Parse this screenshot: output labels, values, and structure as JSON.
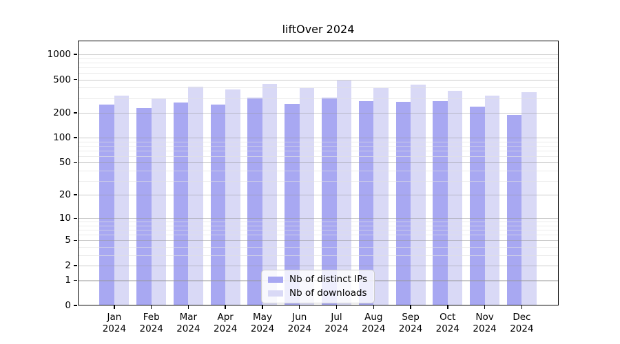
{
  "title": "liftOver 2024",
  "chart_data": {
    "type": "bar",
    "title": "liftOver 2024",
    "categories": [
      "Jan",
      "Feb",
      "Mar",
      "Apr",
      "May",
      "Jun",
      "Jul",
      "Aug",
      "Sep",
      "Oct",
      "Nov",
      "Dec"
    ],
    "year_label": "2024",
    "series": [
      {
        "name": "Nb of distinct IPs",
        "color": "#a8a8f2",
        "values": [
          249,
          226,
          265,
          252,
          303,
          255,
          301,
          278,
          270,
          275,
          236,
          188
        ]
      },
      {
        "name": "Nb of downloads",
        "color": "#d9d9f6",
        "values": [
          321,
          297,
          410,
          380,
          440,
          393,
          484,
          395,
          434,
          364,
          321,
          350
        ]
      }
    ],
    "yscale": "log10(1+v)",
    "ylim": [
      0,
      1459
    ],
    "y_ticks": [
      0,
      1,
      2,
      5,
      10,
      20,
      50,
      100,
      200,
      500,
      1000
    ],
    "y_minor_gridlines": [
      3,
      4,
      6,
      7,
      8,
      9,
      30,
      40,
      60,
      70,
      80,
      90,
      300,
      400,
      600,
      700,
      800,
      900
    ],
    "grid": true,
    "legend_position": "lower center"
  },
  "legend": {
    "entries": [
      "Nb of distinct IPs",
      "Nb of downloads"
    ]
  }
}
